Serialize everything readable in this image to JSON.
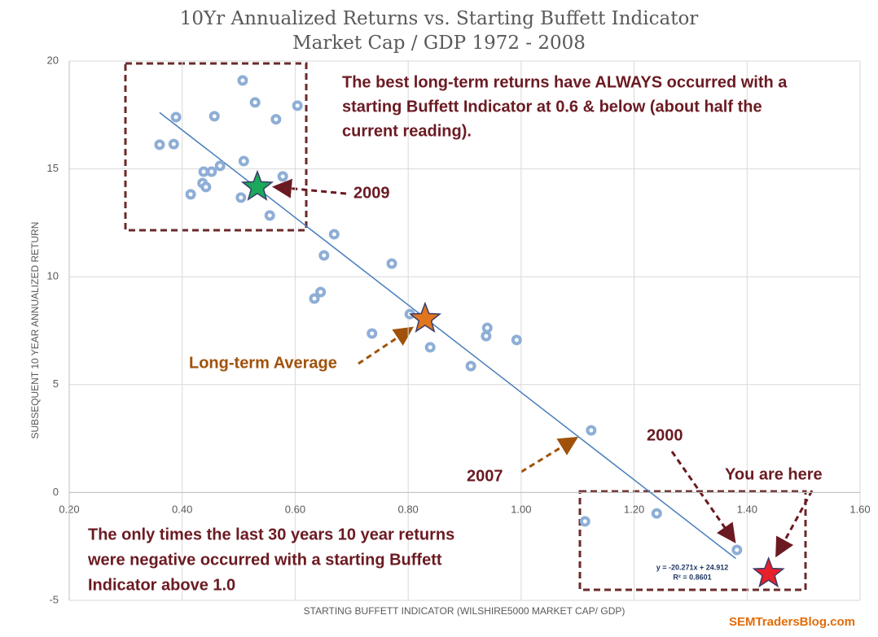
{
  "chart_data": {
    "type": "scatter",
    "title": [
      "10Yr Annualized Returns vs. Starting Buffett Indicator",
      "Market Cap / GDP 1972 - 2008"
    ],
    "x_label": "STARTING BUFFETT INDICATOR (WILSHIRE5000 MARKET CAP/ GDP)",
    "y_label": "SUBSEQUENT 10 YEAR ANNUALIZED RETURN",
    "xlim": [
      0.2,
      1.6
    ],
    "ylim": [
      -5,
      20
    ],
    "xticks": [
      {
        "value": 0.2,
        "label": "0.20"
      },
      {
        "value": 0.4,
        "label": "0.40"
      },
      {
        "value": 0.6,
        "label": "0.60"
      },
      {
        "value": 0.8,
        "label": "0.80"
      },
      {
        "value": 1.0,
        "label": "1.00"
      },
      {
        "value": 1.2,
        "label": "1.20"
      },
      {
        "value": 1.4,
        "label": "1.40"
      },
      {
        "value": 1.6,
        "label": "1.60"
      }
    ],
    "yticks": [
      -5,
      0,
      5,
      10,
      15,
      20
    ],
    "grid": true,
    "series": [
      {
        "color": "#8eaed6",
        "x": [
          0.36,
          0.385,
          0.389,
          0.457,
          0.507,
          0.529,
          0.566,
          0.604,
          0.509,
          0.467,
          0.438,
          0.452,
          0.436,
          0.442,
          0.415,
          0.578,
          0.504,
          0.555,
          0.669,
          0.651,
          0.771,
          0.645,
          0.634,
          0.803,
          0.736,
          0.94,
          0.938,
          0.992,
          0.839,
          0.911,
          1.124,
          1.113,
          1.24,
          1.382
        ],
        "values": [
          16.12,
          16.15,
          17.4,
          17.44,
          19.1,
          18.08,
          17.3,
          17.93,
          15.36,
          15.14,
          14.87,
          14.87,
          14.34,
          14.16,
          13.82,
          14.65,
          13.67,
          12.84,
          11.97,
          10.99,
          10.61,
          9.29,
          8.99,
          8.27,
          7.37,
          7.63,
          7.25,
          7.07,
          6.73,
          5.86,
          2.88,
          -1.34,
          -0.97,
          -2.66
        ]
      }
    ],
    "stars": [
      {
        "x": 0.533,
        "value": 14.16,
        "color": "#1aa85a"
      },
      {
        "x": 0.83,
        "value": 8.05,
        "color": "#e0761e"
      },
      {
        "x": 1.438,
        "value": -3.76,
        "color": "#e8202a"
      }
    ],
    "trendline": {
      "color": "#4a7ebb",
      "x": [
        0.36,
        1.38
      ],
      "values": [
        17.61,
        -3.06
      ],
      "equation": "y = -20.271x + 24.912",
      "r2": "R² = 0.8601"
    },
    "annotations": [
      {
        "lines": [
          "The best long-term returns have ALWAYS occurred with a",
          "starting Buffett Indicator at 0.6 & below (about half the",
          "current reading)."
        ],
        "color": "#6b1a22"
      },
      {
        "lines": [
          "2009"
        ],
        "color": "#6b1a22"
      },
      {
        "lines": [
          "Long-term Average"
        ],
        "color": "#a0520a"
      },
      {
        "lines": [
          "2007"
        ],
        "color": "#6b1a22"
      },
      {
        "lines": [
          "2000"
        ],
        "color": "#6b1a22"
      },
      {
        "lines": [
          "You are here"
        ],
        "color": "#6b1a22"
      },
      {
        "lines": [
          "The only times the last 30 years 10 year returns",
          "were negative occurred with a starting Buffett",
          "Indicator above 1.0"
        ],
        "color": "#6b1a22"
      }
    ],
    "watermark": "SEMTradersBlog.com"
  }
}
